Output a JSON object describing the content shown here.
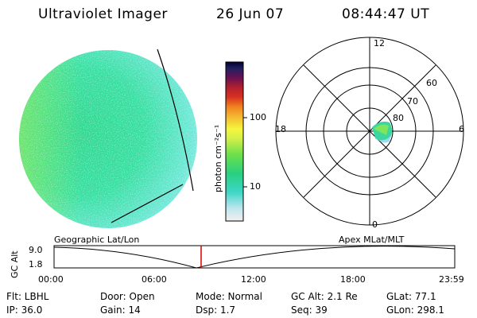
{
  "header": {
    "title": "Ultraviolet Imager",
    "date": "26 Jun 07",
    "time": "08:44:47 UT"
  },
  "colorbar": {
    "unit_label": "photon cm⁻²s⁻¹",
    "ticks": [
      "100",
      "10"
    ]
  },
  "polar": {
    "mlt_labels": {
      "top": "12",
      "left": "18",
      "right": "6",
      "bottom": "0"
    },
    "lat_labels": [
      "60",
      "70",
      "80"
    ]
  },
  "timeline": {
    "axis_label": "GC Alt",
    "left_title": "Geographic Lat/Lon",
    "right_title": "Apex MLat/MLT",
    "y_ticks": [
      "9.0",
      "1.8"
    ],
    "x_ticks": [
      "00:00",
      "06:00",
      "12:00",
      "18:00",
      "23:59"
    ],
    "current_time_fraction": 0.367,
    "marker_color": "#d00000"
  },
  "info": {
    "filter": "Flt: LBHL",
    "ip": "IP: 36.0",
    "door": "Door: Open",
    "gain": "Gain: 14",
    "mode": "Mode: Normal",
    "dsp": "Dsp:     1.7",
    "gc_alt": "GC Alt: 2.1 Re",
    "seq": "Seq: 39",
    "glat": "GLat:  77.1",
    "glon": "GLon: 298.1"
  }
}
